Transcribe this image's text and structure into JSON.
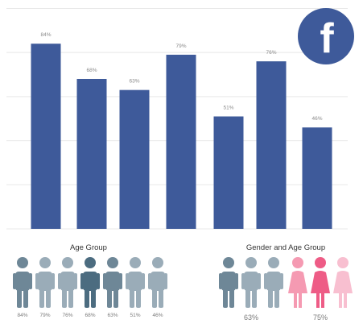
{
  "chart_data": {
    "type": "bar",
    "values": [
      84,
      68,
      63,
      79,
      51,
      76,
      46
    ],
    "value_labels": [
      "84%",
      "68%",
      "63%",
      "79%",
      "51%",
      "76%",
      "46%"
    ],
    "ylim": [
      0,
      100
    ],
    "grid": true,
    "bar_color": "#3e5a9a",
    "grid_color": "#e8e8e8"
  },
  "brand": {
    "icon": "facebook-logo-icon",
    "letter": "f",
    "color": "#3e5a9a"
  },
  "age_group": {
    "title": "Age Group",
    "people": [
      {
        "label": "84%",
        "color": "#6e8797"
      },
      {
        "label": "79%",
        "color": "#9aacb8"
      },
      {
        "label": "76%",
        "color": "#9aacb8"
      },
      {
        "label": "68%",
        "color": "#4c6c80"
      },
      {
        "label": "63%",
        "color": "#6e8797"
      },
      {
        "label": "51%",
        "color": "#9aacb8"
      },
      {
        "label": "46%",
        "color": "#9aacb8"
      }
    ]
  },
  "gender_age_group": {
    "title": "Gender and Age Group",
    "male": {
      "label": "63%",
      "colors": [
        "#6e8797",
        "#9aacb8",
        "#9aacb8"
      ]
    },
    "female": {
      "label": "75%",
      "colors": [
        "#f59ab2",
        "#ee5c86",
        "#f8bfd0"
      ]
    }
  }
}
